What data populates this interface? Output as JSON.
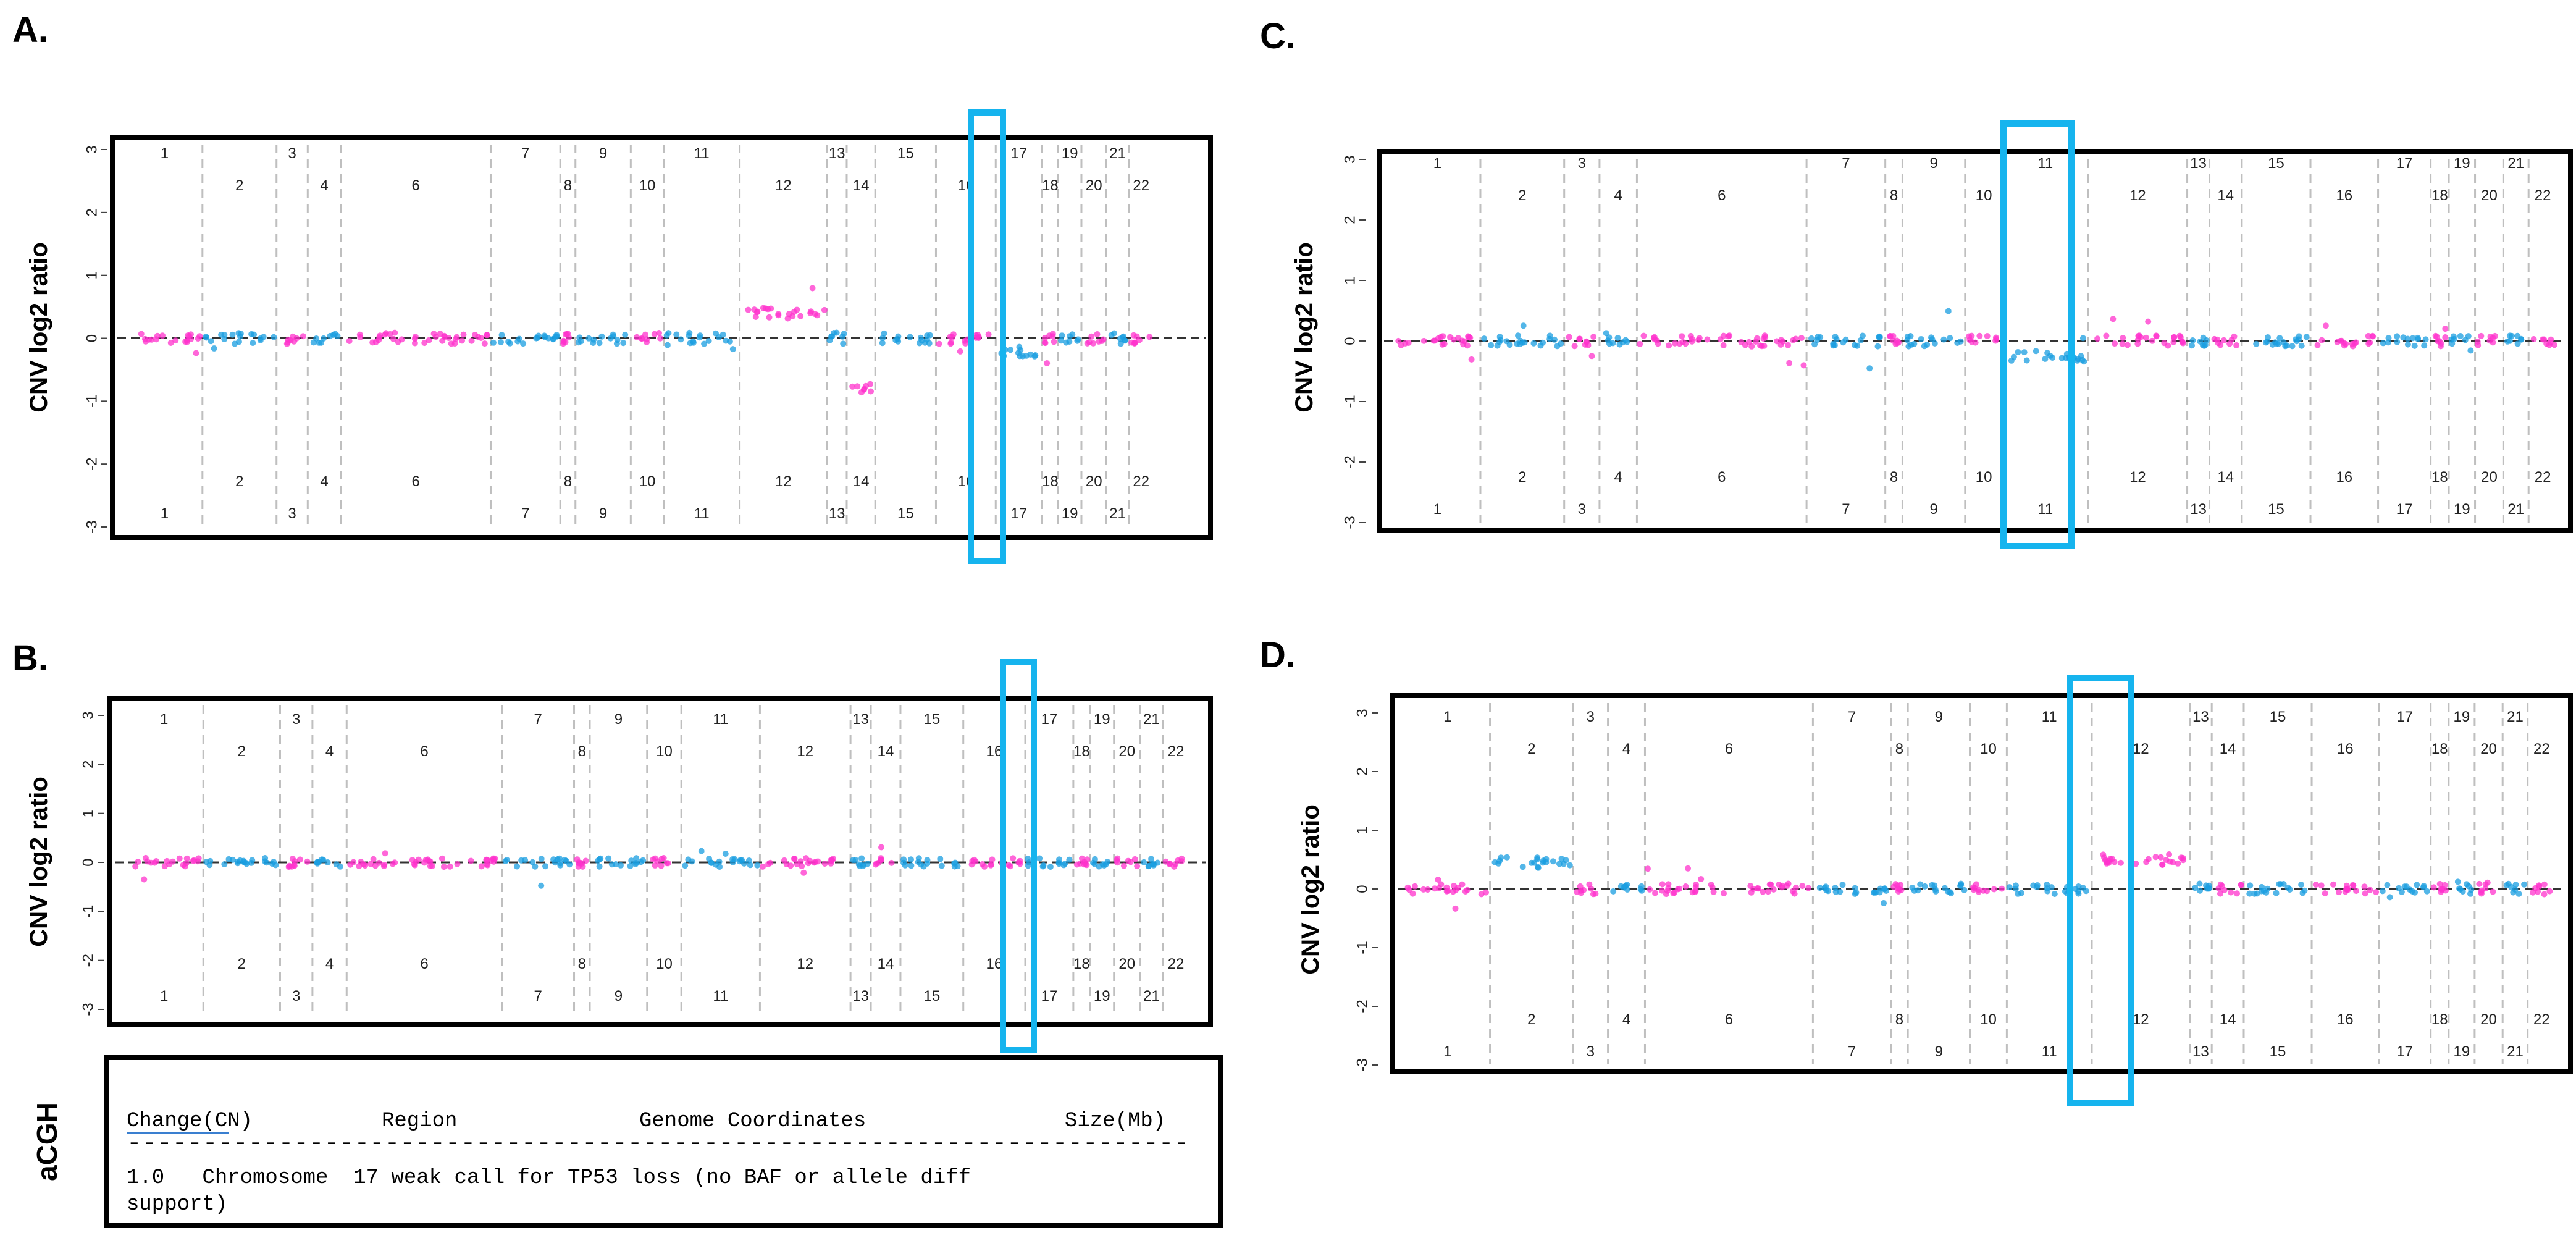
{
  "chart_data": [
    {
      "panel": "A.",
      "type": "scatter",
      "ylabel": "CNV log2 ratio",
      "ylim": [
        -3,
        3
      ],
      "yticks": [
        3,
        2,
        1,
        0,
        -1,
        -2,
        -3
      ],
      "highlight_chromosome": "17",
      "chromosomes": [
        "1",
        "2",
        "3",
        "4",
        "6",
        "7",
        "8",
        "9",
        "10",
        "11",
        "12",
        "13",
        "14",
        "15",
        "16",
        "17",
        "18",
        "19",
        "20",
        "21",
        "22"
      ],
      "segments": [
        {
          "chromosome": "1",
          "log2_ratio": 0.0
        },
        {
          "chromosome": "12",
          "log2_ratio": 0.4
        },
        {
          "chromosome": "14",
          "log2_ratio": -0.8
        },
        {
          "chromosome": "17",
          "log2_ratio": -0.2
        }
      ]
    },
    {
      "panel": "B.",
      "type": "scatter",
      "ylabel": "CNV log2 ratio",
      "ylim": [
        -3,
        3
      ],
      "yticks": [
        3,
        2,
        1,
        0,
        -1,
        -2,
        -3
      ],
      "highlight_chromosome": "17",
      "chromosomes": [
        "1",
        "2",
        "3",
        "4",
        "6",
        "7",
        "8",
        "9",
        "10",
        "11",
        "12",
        "13",
        "14",
        "15",
        "16",
        "17",
        "18",
        "19",
        "20",
        "21",
        "22"
      ],
      "segments": [
        {
          "chromosome": "1",
          "log2_ratio": 0.0
        },
        {
          "chromosome": "17",
          "log2_ratio": 0.0
        }
      ]
    },
    {
      "panel": "C.",
      "type": "scatter",
      "ylabel": "CNV log2 ratio",
      "ylim": [
        -3,
        3
      ],
      "yticks": [
        3,
        2,
        1,
        0,
        -1,
        -2,
        -3
      ],
      "highlight_chromosome": "11",
      "chromosomes": [
        "1",
        "2",
        "3",
        "4",
        "6",
        "7",
        "8",
        "9",
        "10",
        "11",
        "12",
        "13",
        "14",
        "15",
        "16",
        "17",
        "18",
        "19",
        "20",
        "21",
        "22"
      ],
      "segments": [
        {
          "chromosome": "1",
          "log2_ratio": 0.0
        },
        {
          "chromosome": "11",
          "log2_ratio": -0.25
        }
      ]
    },
    {
      "panel": "D.",
      "type": "scatter",
      "ylabel": "CNV log2 ratio",
      "ylim": [
        -3,
        3
      ],
      "yticks": [
        3,
        2,
        1,
        0,
        -1,
        -2,
        -3
      ],
      "highlight_chromosome": "12",
      "chromosomes": [
        "1",
        "2",
        "3",
        "4",
        "6",
        "7",
        "8",
        "9",
        "10",
        "11",
        "12",
        "13",
        "14",
        "15",
        "16",
        "17",
        "18",
        "19",
        "20",
        "21",
        "22"
      ],
      "segments": [
        {
          "chromosome": "1",
          "log2_ratio": 0.0
        },
        {
          "chromosome": "2",
          "log2_ratio": 0.45
        },
        {
          "chromosome": "12",
          "log2_ratio": 0.5
        }
      ]
    }
  ],
  "acgh_table": {
    "side_label": "aCGH",
    "headers": [
      "Change(CN)",
      "Region",
      "Genome Coordinates",
      "Size(Mb)"
    ],
    "divider": "----------------------------------------------------------------------",
    "row_line1": "1.0   Chromosome  17 weak call for TP53 loss (no BAF or allele diff",
    "row_line2": "support)"
  },
  "colors": {
    "magenta": "#ff33cc",
    "blue": "#1a9ee0",
    "highlight": "#16b4ee",
    "frame": "#000000"
  }
}
